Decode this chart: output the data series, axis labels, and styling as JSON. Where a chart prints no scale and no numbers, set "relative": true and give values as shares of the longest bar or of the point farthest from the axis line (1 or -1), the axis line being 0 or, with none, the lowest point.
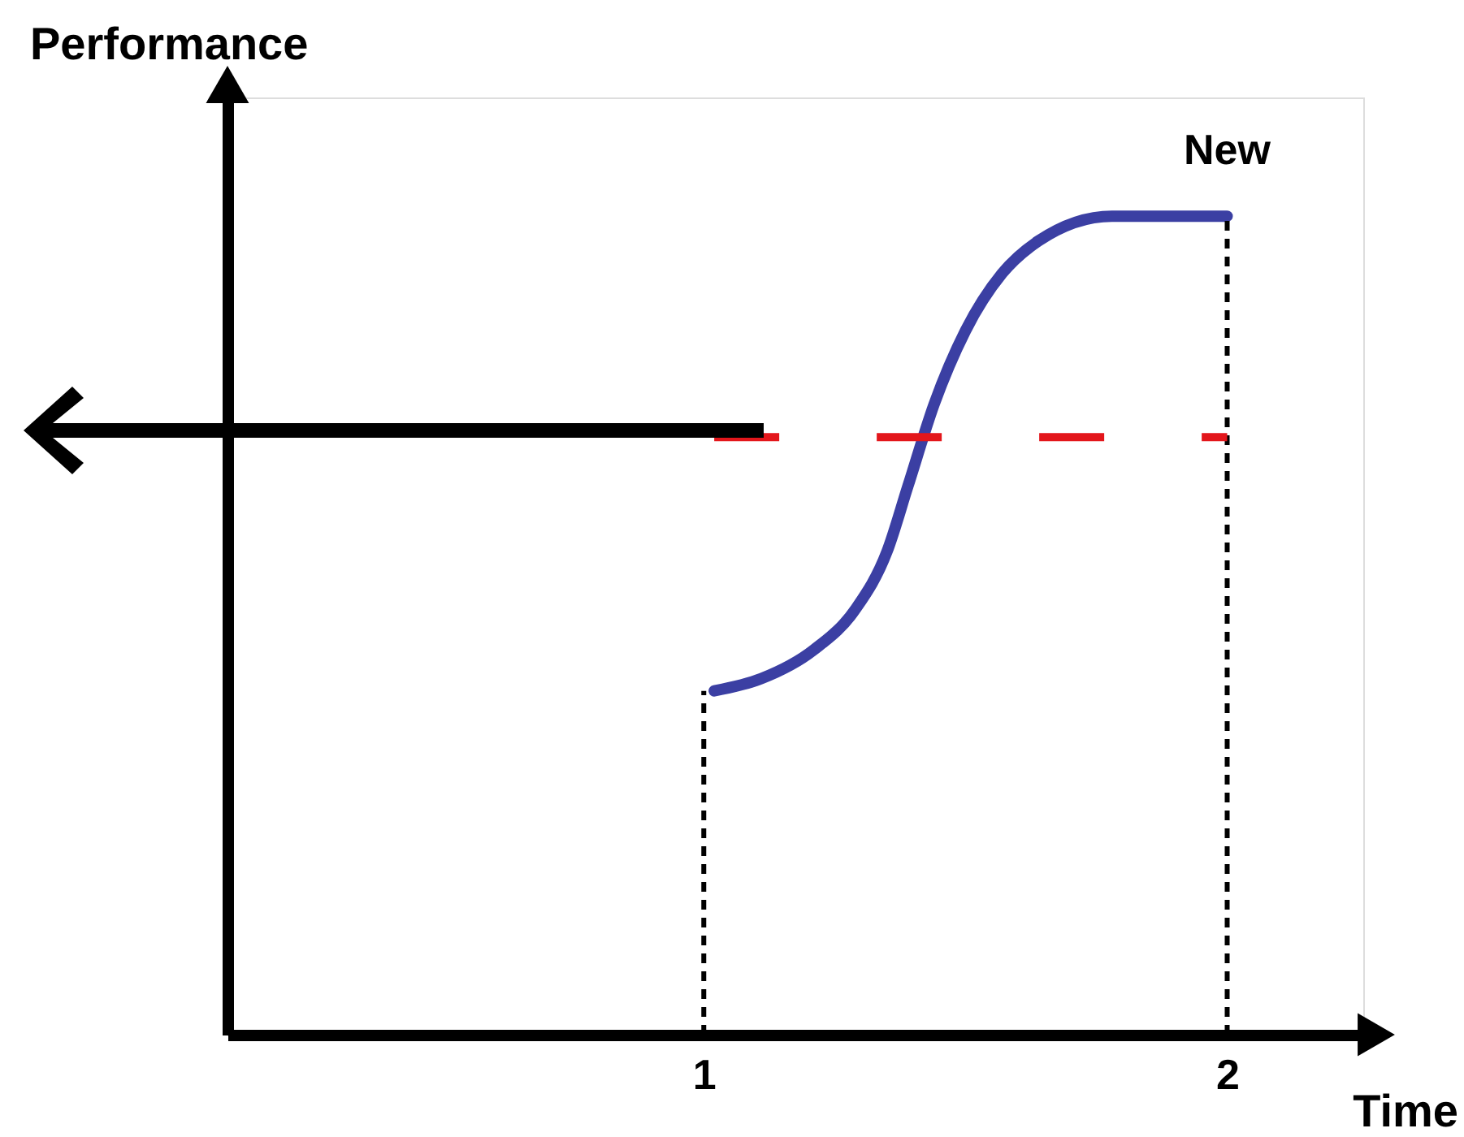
{
  "chart_data": {
    "type": "line",
    "relative": true,
    "xlabel": "Time",
    "ylabel": "Performance",
    "xlim": [
      0.09,
      2.26
    ],
    "xticks": [
      1,
      2
    ],
    "series": [
      {
        "color": "#3b3fa3",
        "x": [
          1.02,
          1.11,
          1.21,
          1.29,
          1.35,
          1.39,
          1.44,
          1.5,
          1.57,
          1.64,
          1.78,
          2.0
        ],
        "values": [
          0.42,
          0.435,
          0.47,
          0.52,
          0.59,
          0.67,
          0.77,
          0.86,
          0.93,
          0.97,
          1.0,
          1.0
        ]
      }
    ],
    "ref_lines": [
      {
        "axis": "x",
        "value": 1,
        "line_style": "dashed",
        "color": "#000000"
      },
      {
        "axis": "x",
        "value": 2,
        "line_style": "dashed",
        "color": "#000000"
      },
      {
        "axis": "y",
        "value": 0.73,
        "line_style": "dashed",
        "color": "#e3161b"
      }
    ],
    "annotations": [
      {
        "text": "New",
        "x": 2,
        "y": 1
      }
    ]
  }
}
